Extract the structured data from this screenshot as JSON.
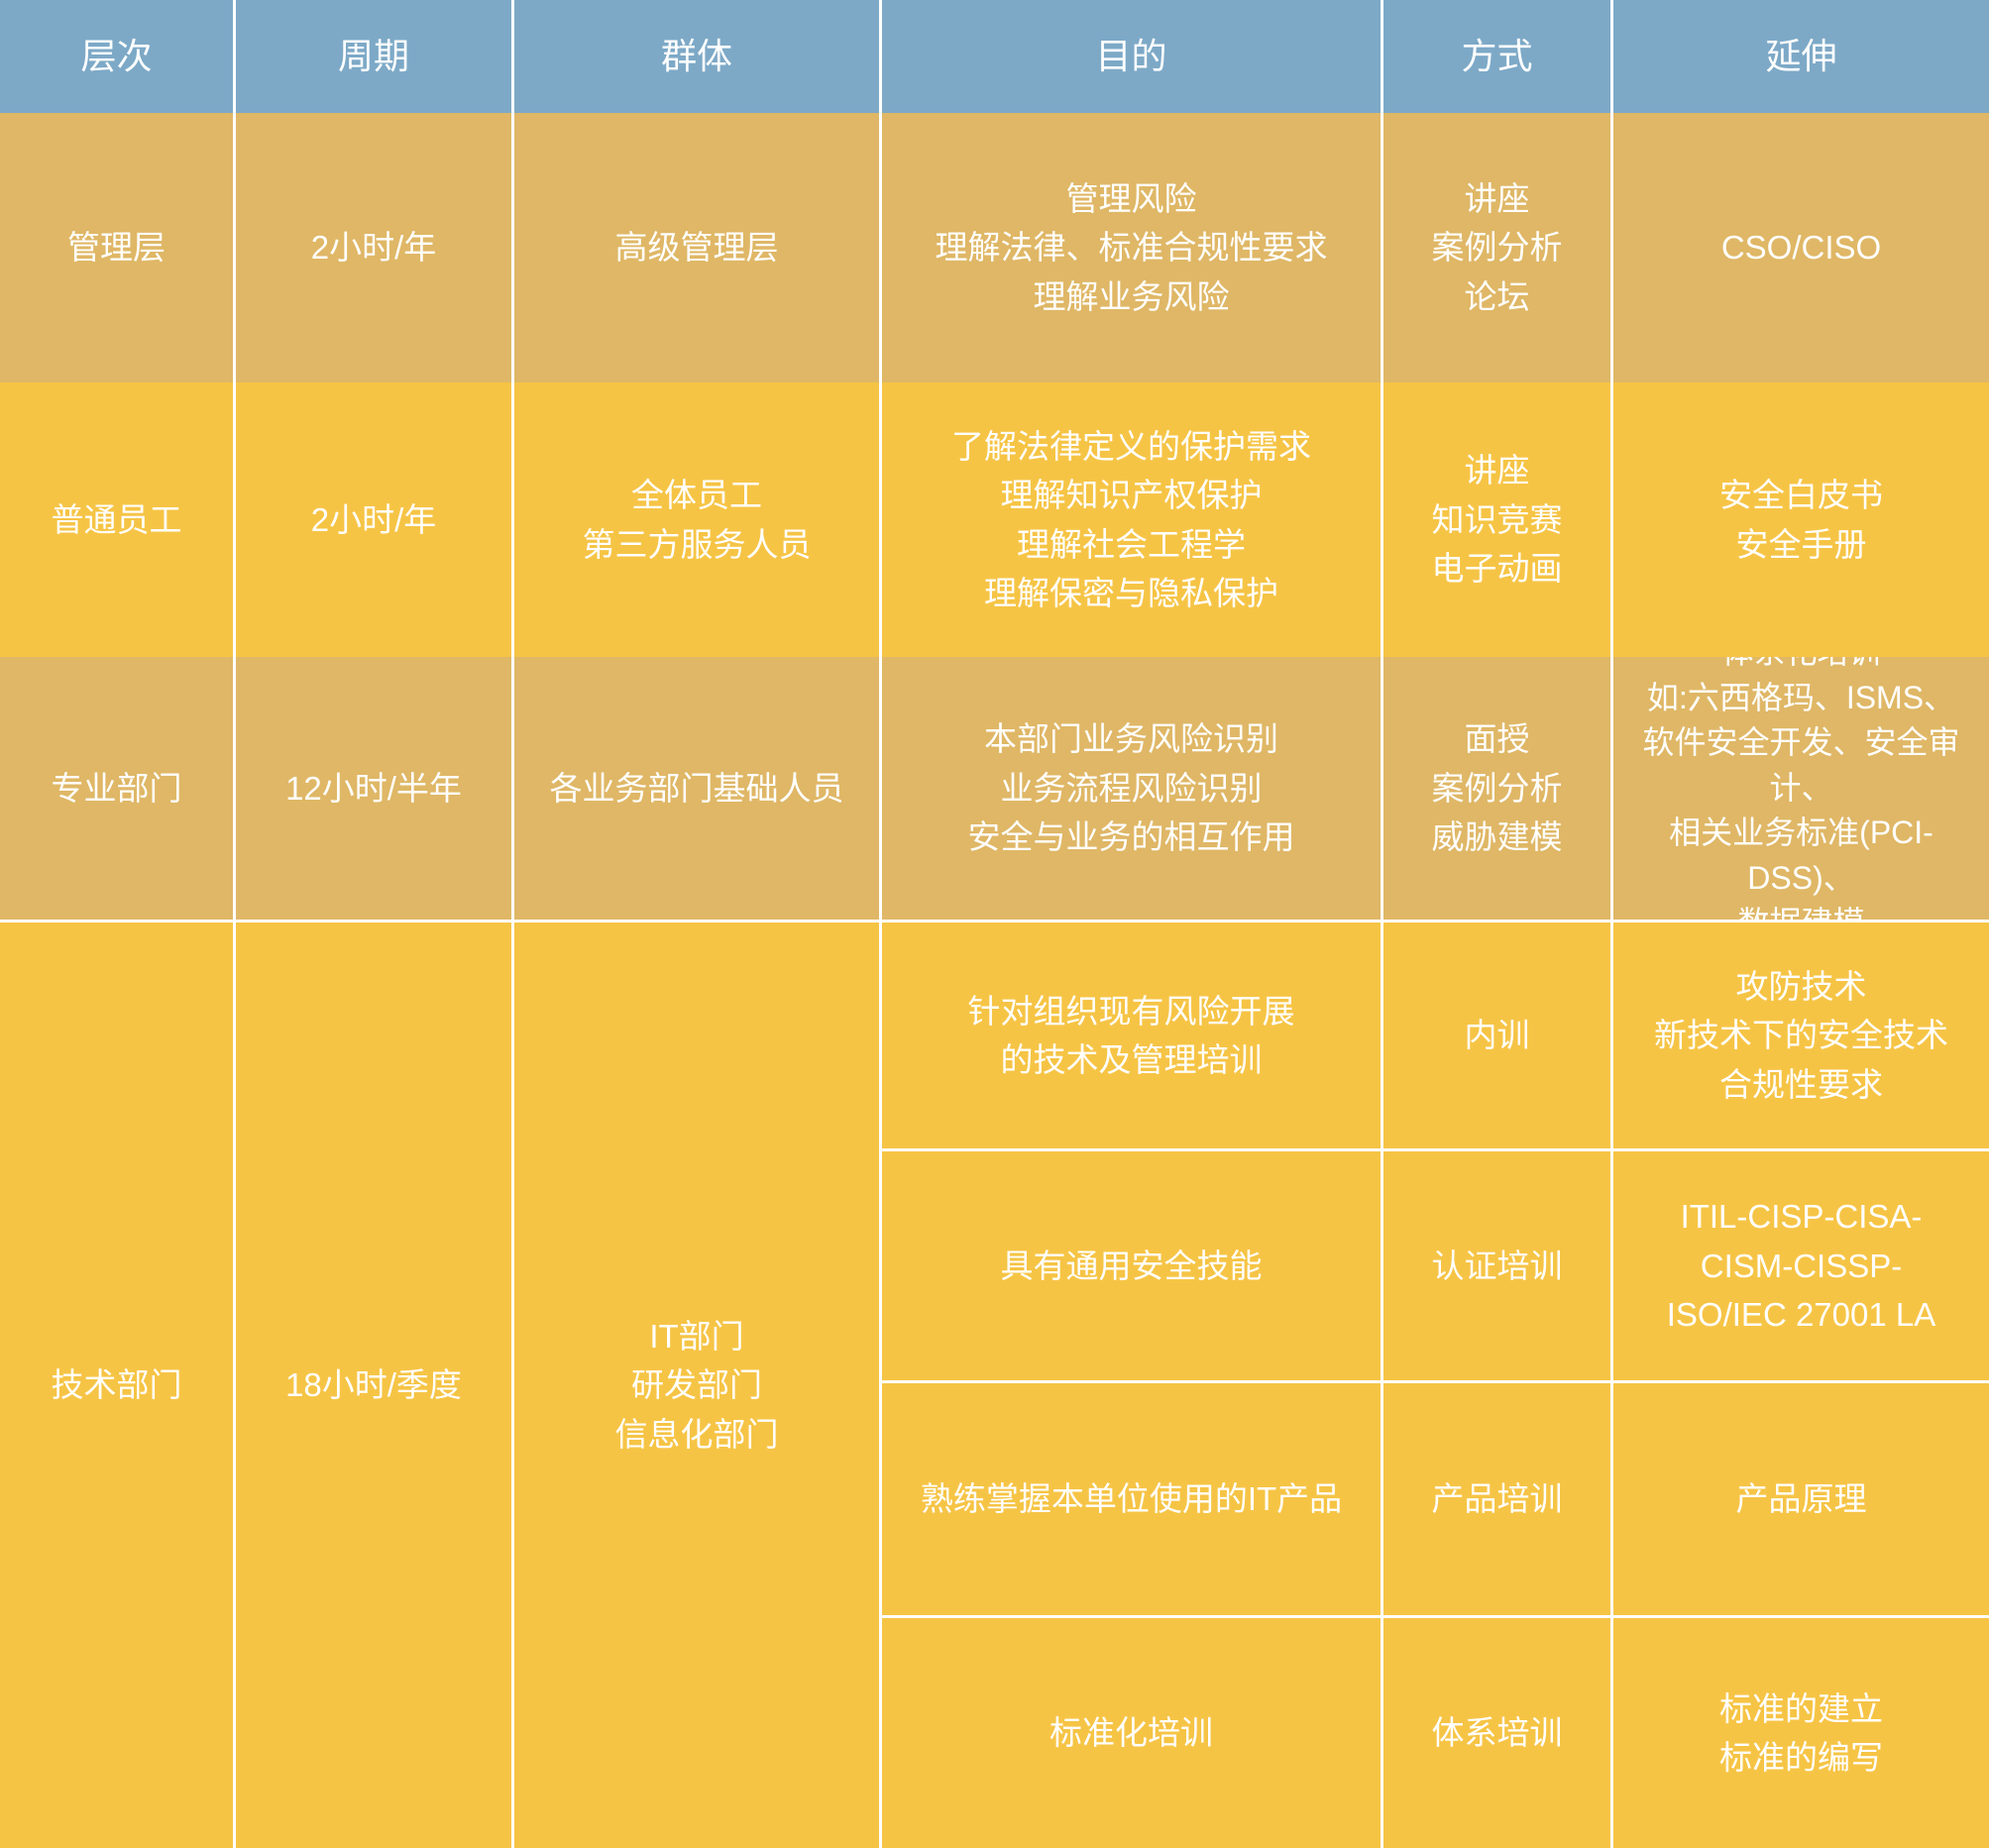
{
  "table": {
    "colors": {
      "header_bg": "#7DA9C7",
      "row_tan_bg": "#DFB766",
      "row_yellow_bg": "#F6C445",
      "grid_line": "#FFFFFF",
      "text": "#FFFFFF"
    },
    "columns": [
      {
        "key": "level",
        "label": "层次"
      },
      {
        "key": "cycle",
        "label": "周期"
      },
      {
        "key": "group",
        "label": "群体"
      },
      {
        "key": "purpose",
        "label": "目的"
      },
      {
        "key": "method",
        "label": "方式"
      },
      {
        "key": "extension",
        "label": "延伸"
      }
    ],
    "rows": [
      {
        "level": "管理层",
        "cycle": "2小时/年",
        "group": [
          "高级管理层"
        ],
        "purpose": [
          "管理风险",
          "理解法律、标准合规性要求",
          "理解业务风险"
        ],
        "method": [
          "讲座",
          "案例分析",
          "论坛"
        ],
        "extension": [
          "CSO/CISO"
        ]
      },
      {
        "level": "普通员工",
        "cycle": "2小时/年",
        "group": [
          "全体员工",
          "第三方服务人员"
        ],
        "purpose": [
          "了解法律定义的保护需求",
          "理解知识产权保护",
          "理解社会工程学",
          "理解保密与隐私保护"
        ],
        "method": [
          "讲座",
          "知识竞赛",
          "电子动画"
        ],
        "extension": [
          "安全白皮书",
          "安全手册"
        ]
      },
      {
        "level": "专业部门",
        "cycle": "12小时/半年",
        "group": [
          "各业务部门基础人员"
        ],
        "purpose": [
          "本部门业务风险识别",
          "业务流程风险识别",
          "安全与业务的相互作用"
        ],
        "method": [
          "面授",
          "案例分析",
          "威胁建模"
        ],
        "extension": [
          "体系化培训",
          "如:六西格玛、ISMS、",
          "软件安全开发、安全审计、",
          "相关业务标准(PCI-DSS)、",
          "数据建模"
        ]
      },
      {
        "level": "技术部门",
        "cycle": "18小时/季度",
        "group": [
          "IT部门",
          "研发部门",
          "信息化部门"
        ],
        "subrows": [
          {
            "purpose": [
              "针对组织现有风险开展",
              "的技术及管理培训"
            ],
            "method": [
              "内训"
            ],
            "extension": [
              "攻防技术",
              "新技术下的安全技术",
              "合规性要求"
            ]
          },
          {
            "purpose": [
              "具有通用安全技能"
            ],
            "method": [
              "认证培训"
            ],
            "extension": [
              "ITIL-CISP-CISA-",
              "CISM-CISSP-",
              "ISO/IEC 27001 LA"
            ]
          },
          {
            "purpose": [
              "熟练掌握本单位使用的IT产品"
            ],
            "method": [
              "产品培训"
            ],
            "extension": [
              "产品原理"
            ]
          },
          {
            "purpose": [
              "标准化培训"
            ],
            "method": [
              "体系培训"
            ],
            "extension": [
              "标准的建立",
              "标准的编写"
            ]
          }
        ]
      }
    ]
  }
}
